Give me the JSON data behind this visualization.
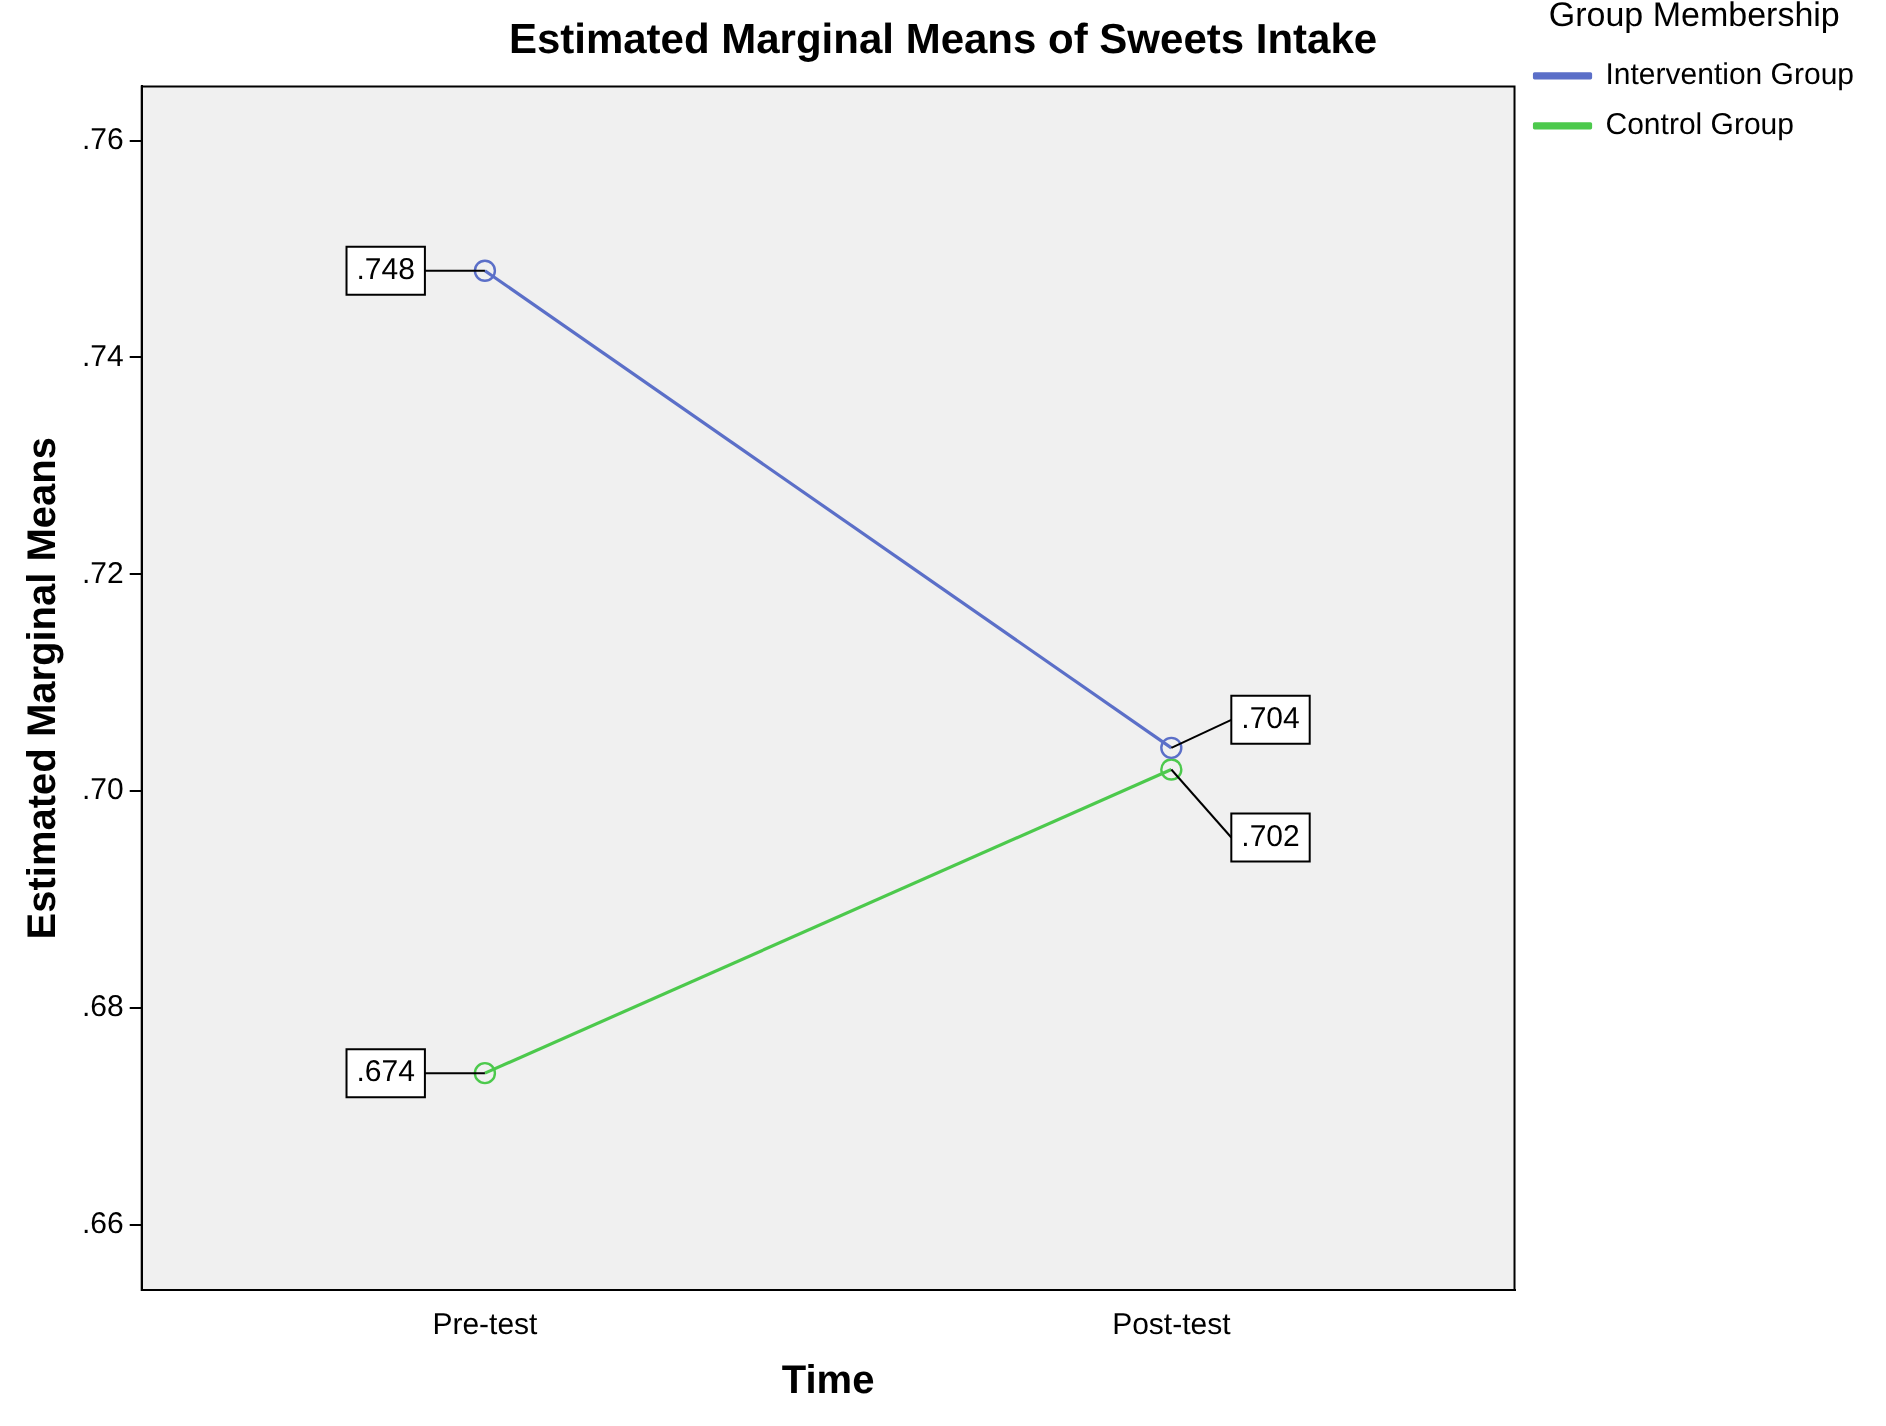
{
  "chart_data": {
    "type": "line",
    "title": "Estimated Marginal Means of Sweets Intake",
    "xlabel": "Time",
    "ylabel": "Estimated Marginal Means",
    "legend_title": "Group Membership",
    "legend": "top right",
    "marker": "circle",
    "grid": false,
    "categories": [
      "Pre-test",
      "Post-test"
    ],
    "ylim": [
      0.654,
      0.765
    ],
    "yticks": [
      {
        "value": 0.66,
        "label": ".66"
      },
      {
        "value": 0.68,
        "label": ".68"
      },
      {
        "value": 0.7,
        "label": ".70"
      },
      {
        "value": 0.72,
        "label": ".72"
      },
      {
        "value": 0.74,
        "label": ".74"
      },
      {
        "value": 0.76,
        "label": ".76"
      }
    ],
    "series": [
      {
        "name": "Intervention Group",
        "color": "#5b6fc8",
        "values": [
          0.748,
          0.704
        ],
        "value_labels": [
          ".748",
          ".704"
        ]
      },
      {
        "name": "Control Group",
        "color": "#4cc94c",
        "values": [
          0.674,
          0.702
        ],
        "value_labels": [
          ".674",
          ".702"
        ]
      }
    ]
  }
}
